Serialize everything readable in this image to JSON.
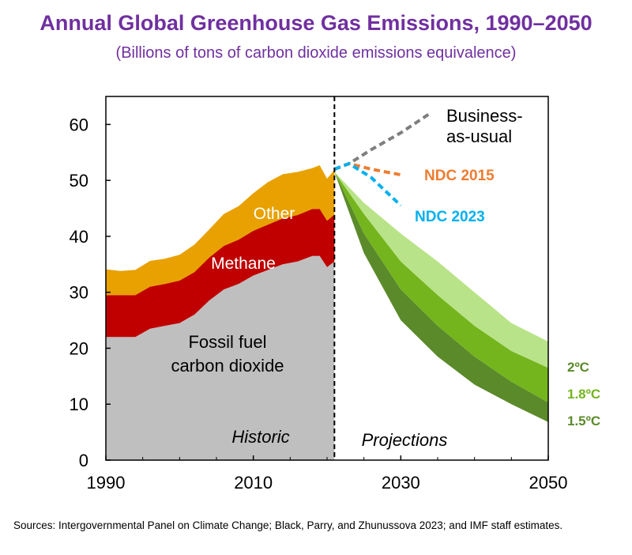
{
  "title": "Annual Global Greenhouse Gas Emissions, 1990–2050",
  "subtitle": "(Billions of tons of carbon dioxide emissions equivalence)",
  "source": "Sources: Intergovernmental Panel on Climate Change; Black, Parry, and Zhunussova 2023; and IMF staff estimates.",
  "chart_data": {
    "type": "area",
    "xlim": [
      1990,
      2050
    ],
    "ylim": [
      0,
      65
    ],
    "x_ticks": [
      "1990",
      "2010",
      "2030",
      "2050"
    ],
    "y_ticks": [
      "0",
      "10",
      "20",
      "30",
      "40",
      "50",
      "60"
    ],
    "grid": false,
    "historic_label": "Historic",
    "projection_label": "Projections",
    "divider_x": 2021,
    "historic": {
      "x": [
        1990,
        1992,
        1994,
        1996,
        1998,
        2000,
        2002,
        2004,
        2006,
        2008,
        2010,
        2012,
        2014,
        2016,
        2018,
        2019,
        2020,
        2021
      ],
      "series": [
        {
          "name": "Fossil fuel carbon dioxide",
          "label_lines": [
            "Fossil fuel",
            "carbon dioxide"
          ],
          "color": "#bfbfbf",
          "values": [
            22,
            22,
            22,
            23.5,
            24,
            24.5,
            26,
            28.5,
            30.5,
            31.5,
            33,
            34,
            35,
            35.5,
            36.5,
            36.5,
            34.5,
            35.5
          ]
        },
        {
          "name": "Methane",
          "color": "#c00000",
          "values": [
            7.5,
            7.5,
            7.5,
            7.5,
            7.5,
            7.6,
            7.6,
            7.7,
            7.8,
            7.9,
            8,
            8.1,
            8.2,
            8.3,
            8.4,
            8.4,
            8.3,
            8.4
          ]
        },
        {
          "name": "Other",
          "color": "#e8a100",
          "values": [
            4.6,
            4.3,
            4.5,
            4.6,
            4.5,
            4.6,
            4.9,
            5,
            5.7,
            6,
            6.7,
            7.6,
            7.9,
            7.7,
            7.3,
            7.8,
            7.5,
            8
          ]
        }
      ]
    },
    "projection_bands": {
      "x": [
        2021,
        2025,
        2030,
        2035,
        2040,
        2045,
        2050
      ],
      "bands": [
        {
          "name": "1.5ºC",
          "color": "#5b8a2a",
          "low": [
            51.5,
            37,
            25,
            18.5,
            13.5,
            10,
            6.8
          ],
          "high": [
            51.5,
            40.5,
            30.5,
            24,
            18.5,
            14,
            10.3
          ]
        },
        {
          "name": "1.8ºC",
          "color": "#74b51e",
          "low": [
            51.5,
            40.5,
            30.5,
            24,
            18.5,
            14,
            10.3
          ],
          "high": [
            51.5,
            44,
            35.5,
            29.5,
            24,
            19.5,
            16.5
          ]
        },
        {
          "name": "2ºC",
          "color": "#b9e388",
          "low": [
            51.5,
            44,
            35.5,
            29.5,
            24,
            19.5,
            16.5
          ],
          "high": [
            51.5,
            46,
            40.5,
            35.5,
            30,
            24.5,
            21.2
          ]
        }
      ],
      "labels": [
        {
          "text": "2ºC",
          "color": "#5b8a2a"
        },
        {
          "text": "1.8ºC",
          "color": "#74b51e"
        },
        {
          "text": "1.5ºC",
          "color": "#5b8a2a"
        }
      ]
    },
    "scenarios": [
      {
        "name": "Business-as-usual",
        "label_lines": [
          "Business-",
          "as-usual"
        ],
        "color": "#7f7f7f",
        "label_color": "#000000",
        "x": [
          2021,
          2023,
          2026,
          2030,
          2034
        ],
        "values": [
          52,
          53,
          55.5,
          58.5,
          62
        ]
      },
      {
        "name": "NDC 2015",
        "label_lines": [
          "NDC 2015"
        ],
        "color": "#ed7d31",
        "label_color": "#ed7d31",
        "x": [
          2021,
          2023,
          2026,
          2030
        ],
        "values": [
          52,
          53,
          52,
          51
        ]
      },
      {
        "name": "NDC 2023",
        "label_lines": [
          "NDC 2023"
        ],
        "color": "#00b0f0",
        "label_color": "#00b0f0",
        "x": [
          2021,
          2023,
          2026,
          2030
        ],
        "values": [
          52,
          53,
          50.5,
          45.5
        ]
      }
    ]
  }
}
